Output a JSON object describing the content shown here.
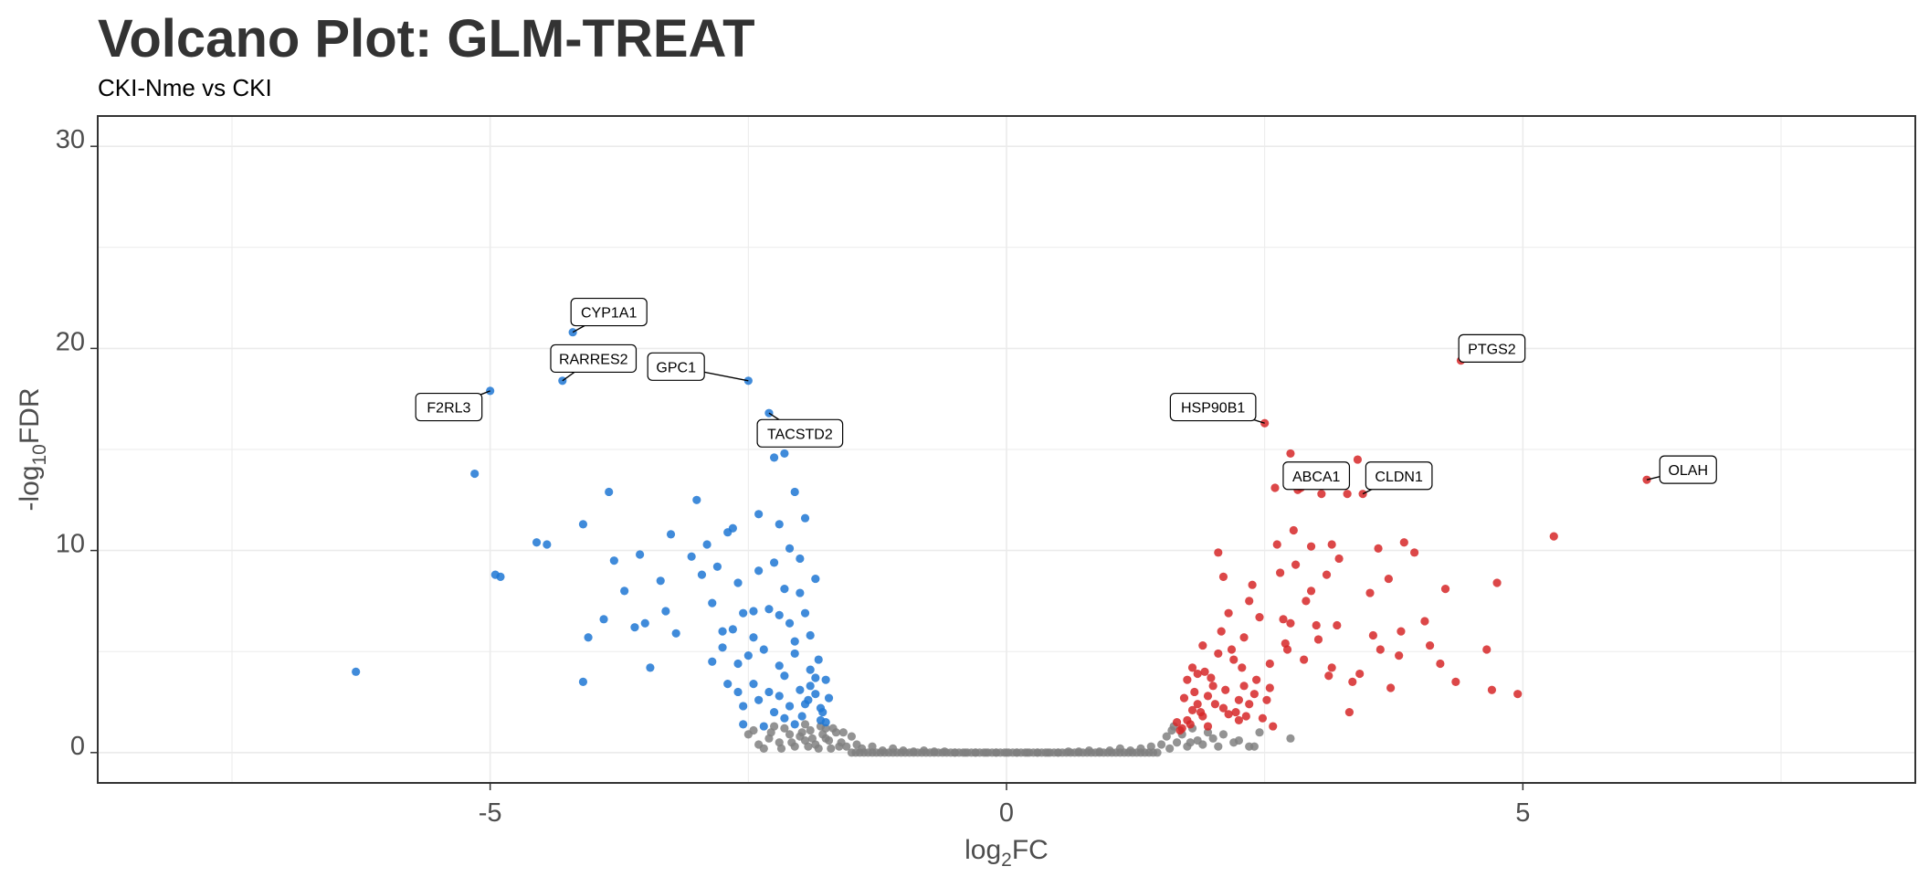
{
  "chart_data": {
    "type": "scatter",
    "title": "Volcano Plot: GLM-TREAT",
    "subtitle": "CKI-Nme vs CKI",
    "xlabel_main": "log",
    "xlabel_sub": "2",
    "xlabel_tail": "FC",
    "ylabel_pre": "-log",
    "ylabel_sub": "10",
    "ylabel_tail": "FDR",
    "xlim": [
      -8.8,
      8.8
    ],
    "ylim": [
      -1.5,
      31.5
    ],
    "x_ticks": [
      -5,
      0,
      5
    ],
    "x_tick_labels": [
      "-5",
      "0",
      "5"
    ],
    "y_ticks": [
      0,
      10,
      20,
      30
    ],
    "y_tick_labels": [
      "0",
      "10",
      "20",
      "30"
    ],
    "grid": true,
    "colors": {
      "down": "#1f77d4",
      "up": "#d62728",
      "ns": "#808080"
    },
    "series": [
      {
        "group": "down",
        "points": [
          [
            -6.3,
            4.0
          ],
          [
            -5.15,
            13.8
          ],
          [
            -5.0,
            17.9
          ],
          [
            -4.95,
            8.8
          ],
          [
            -4.9,
            8.7
          ],
          [
            -4.55,
            10.4
          ],
          [
            -4.45,
            10.3
          ],
          [
            -4.2,
            20.8
          ],
          [
            -4.3,
            18.4
          ],
          [
            -4.1,
            11.3
          ],
          [
            -4.05,
            5.7
          ],
          [
            -4.1,
            3.5
          ],
          [
            -3.9,
            6.6
          ],
          [
            -3.85,
            12.9
          ],
          [
            -3.8,
            9.5
          ],
          [
            -3.7,
            8.0
          ],
          [
            -3.6,
            6.2
          ],
          [
            -3.55,
            9.8
          ],
          [
            -3.5,
            6.4
          ],
          [
            -3.45,
            4.2
          ],
          [
            -3.35,
            8.5
          ],
          [
            -3.3,
            7.0
          ],
          [
            -3.25,
            10.8
          ],
          [
            -3.2,
            5.9
          ],
          [
            -3.05,
            9.7
          ],
          [
            -3.0,
            12.5
          ],
          [
            -2.95,
            8.8
          ],
          [
            -2.9,
            10.3
          ],
          [
            -2.85,
            7.4
          ],
          [
            -2.8,
            9.2
          ],
          [
            -2.75,
            6.0
          ],
          [
            -2.7,
            10.9
          ],
          [
            -2.65,
            11.1
          ],
          [
            -2.6,
            4.4
          ],
          [
            -2.55,
            6.9
          ],
          [
            -2.5,
            18.4
          ],
          [
            -2.45,
            7.0
          ],
          [
            -2.4,
            11.8
          ],
          [
            -2.35,
            15.6
          ],
          [
            -2.3,
            16.8
          ],
          [
            -2.25,
            14.6
          ],
          [
            -2.2,
            11.3
          ],
          [
            -2.15,
            14.8
          ],
          [
            -2.1,
            10.1
          ],
          [
            -2.05,
            12.9
          ],
          [
            -2.0,
            9.6
          ],
          [
            -1.95,
            11.6
          ],
          [
            -2.55,
            1.4
          ],
          [
            -2.45,
            3.4
          ],
          [
            -2.4,
            2.6
          ],
          [
            -2.35,
            5.1
          ],
          [
            -2.3,
            3.0
          ],
          [
            -2.25,
            2.0
          ],
          [
            -2.2,
            4.3
          ],
          [
            -2.15,
            1.7
          ],
          [
            -2.1,
            6.4
          ],
          [
            -2.05,
            5.5
          ],
          [
            -2.0,
            3.1
          ],
          [
            -1.95,
            2.4
          ],
          [
            -1.9,
            4.1
          ],
          [
            -1.85,
            2.9
          ],
          [
            -1.8,
            1.6
          ],
          [
            -1.75,
            3.6
          ],
          [
            -2.85,
            4.5
          ],
          [
            -2.75,
            5.2
          ],
          [
            -2.7,
            3.4
          ],
          [
            -2.6,
            8.4
          ],
          [
            -2.5,
            4.8
          ],
          [
            -2.3,
            7.1
          ],
          [
            -2.2,
            6.8
          ],
          [
            -2.1,
            2.3
          ],
          [
            -2.0,
            7.9
          ],
          [
            -1.9,
            5.8
          ],
          [
            -1.85,
            3.7
          ],
          [
            -1.8,
            2.2
          ],
          [
            -1.75,
            1.5
          ],
          [
            -1.72,
            2.7
          ],
          [
            -2.4,
            9.0
          ],
          [
            -2.25,
            9.4
          ],
          [
            -2.15,
            8.1
          ],
          [
            -2.05,
            4.9
          ],
          [
            -1.95,
            6.9
          ],
          [
            -1.85,
            8.6
          ],
          [
            -2.65,
            6.1
          ],
          [
            -2.55,
            2.3
          ],
          [
            -2.35,
            1.3
          ],
          [
            -2.15,
            3.8
          ],
          [
            -1.98,
            1.8
          ],
          [
            -1.9,
            3.3
          ],
          [
            -1.82,
            4.6
          ],
          [
            -1.78,
            2.0
          ],
          [
            -2.45,
            5.7
          ],
          [
            -2.2,
            2.8
          ],
          [
            -2.05,
            1.4
          ],
          [
            -1.92,
            2.6
          ],
          [
            -2.6,
            3.0
          ]
        ]
      },
      {
        "group": "up",
        "points": [
          [
            1.65,
            1.5
          ],
          [
            1.7,
            1.2
          ],
          [
            1.75,
            1.6
          ],
          [
            1.8,
            2.1
          ],
          [
            1.75,
            3.6
          ],
          [
            1.8,
            4.2
          ],
          [
            1.85,
            3.9
          ],
          [
            1.9,
            5.3
          ],
          [
            1.85,
            2.4
          ],
          [
            1.9,
            1.8
          ],
          [
            1.95,
            2.8
          ],
          [
            2.0,
            3.3
          ],
          [
            2.05,
            4.9
          ],
          [
            2.1,
            2.2
          ],
          [
            2.15,
            6.9
          ],
          [
            2.1,
            8.7
          ],
          [
            2.05,
            9.9
          ],
          [
            2.2,
            4.6
          ],
          [
            2.25,
            2.6
          ],
          [
            2.3,
            5.7
          ],
          [
            2.35,
            7.5
          ],
          [
            2.3,
            3.3
          ],
          [
            2.25,
            1.6
          ],
          [
            2.4,
            2.9
          ],
          [
            2.45,
            6.7
          ],
          [
            2.5,
            16.3
          ],
          [
            2.55,
            4.4
          ],
          [
            2.6,
            13.1
          ],
          [
            2.65,
            8.9
          ],
          [
            2.7,
            5.4
          ],
          [
            2.75,
            14.8
          ],
          [
            2.8,
            9.3
          ],
          [
            2.85,
            13.1
          ],
          [
            2.9,
            7.5
          ],
          [
            2.95,
            10.2
          ],
          [
            3.0,
            6.3
          ],
          [
            3.05,
            12.8
          ],
          [
            3.1,
            8.8
          ],
          [
            3.15,
            4.2
          ],
          [
            3.2,
            6.3
          ],
          [
            3.3,
            12.8
          ],
          [
            3.35,
            3.5
          ],
          [
            3.4,
            14.5
          ],
          [
            3.45,
            12.8
          ],
          [
            3.55,
            5.8
          ],
          [
            3.6,
            10.1
          ],
          [
            3.7,
            8.6
          ],
          [
            3.8,
            4.8
          ],
          [
            3.85,
            10.4
          ],
          [
            3.95,
            9.9
          ],
          [
            4.05,
            6.5
          ],
          [
            4.1,
            5.3
          ],
          [
            4.2,
            4.4
          ],
          [
            4.25,
            8.1
          ],
          [
            4.35,
            3.5
          ],
          [
            4.4,
            19.4
          ],
          [
            4.65,
            5.1
          ],
          [
            4.7,
            3.1
          ],
          [
            4.75,
            8.4
          ],
          [
            4.95,
            2.9
          ],
          [
            5.3,
            10.7
          ],
          [
            6.2,
            13.5
          ],
          [
            1.68,
            1.1
          ],
          [
            1.72,
            2.7
          ],
          [
            1.78,
            1.4
          ],
          [
            1.82,
            3.0
          ],
          [
            1.88,
            2.0
          ],
          [
            1.92,
            4.0
          ],
          [
            1.98,
            3.7
          ],
          [
            2.02,
            2.4
          ],
          [
            2.08,
            6.0
          ],
          [
            2.12,
            3.1
          ],
          [
            2.18,
            5.1
          ],
          [
            2.22,
            2.0
          ],
          [
            2.28,
            4.2
          ],
          [
            2.32,
            1.8
          ],
          [
            2.38,
            8.3
          ],
          [
            2.42,
            3.6
          ],
          [
            2.48,
            1.7
          ],
          [
            2.52,
            2.6
          ],
          [
            2.58,
            1.3
          ],
          [
            2.62,
            10.3
          ],
          [
            2.68,
            6.6
          ],
          [
            2.72,
            5.1
          ],
          [
            2.78,
            11.0
          ],
          [
            2.82,
            13.0
          ],
          [
            2.88,
            4.6
          ],
          [
            2.95,
            8.0
          ],
          [
            3.02,
            5.6
          ],
          [
            3.12,
            3.8
          ],
          [
            3.22,
            9.6
          ],
          [
            3.32,
            2.0
          ],
          [
            3.42,
            3.9
          ],
          [
            3.52,
            7.9
          ],
          [
            3.62,
            5.1
          ],
          [
            3.72,
            3.2
          ],
          [
            3.82,
            6.0
          ],
          [
            1.95,
            1.3
          ],
          [
            2.15,
            1.9
          ],
          [
            2.35,
            2.4
          ],
          [
            2.55,
            3.2
          ],
          [
            2.75,
            6.4
          ],
          [
            3.15,
            10.3
          ]
        ]
      },
      {
        "group": "ns",
        "points": [
          [
            -2.5,
            0.9
          ],
          [
            -2.4,
            0.4
          ],
          [
            -2.3,
            0.7
          ],
          [
            -2.2,
            0.5
          ],
          [
            -2.15,
            1.2
          ],
          [
            -2.1,
            0.9
          ],
          [
            -2.05,
            0.3
          ],
          [
            -2.0,
            0.8
          ],
          [
            -1.95,
            0.6
          ],
          [
            -1.9,
            1.1
          ],
          [
            -1.85,
            0.4
          ],
          [
            -1.8,
            1.3
          ],
          [
            -1.75,
            0.7
          ],
          [
            -1.7,
            0.2
          ],
          [
            -1.65,
            1.0
          ],
          [
            -1.6,
            0.5
          ],
          [
            -1.55,
            0.3
          ],
          [
            -1.5,
            0.8
          ],
          [
            -1.45,
            0.4
          ],
          [
            -1.4,
            0.2
          ],
          [
            -1.3,
            0.3
          ],
          [
            -1.2,
            0.1
          ],
          [
            -1.1,
            0.2
          ],
          [
            -1.0,
            0.1
          ],
          [
            -0.9,
            0.05
          ],
          [
            -0.8,
            0.1
          ],
          [
            -0.7,
            0.05
          ],
          [
            -0.6,
            0.05
          ],
          [
            -0.5,
            0.0
          ],
          [
            -0.4,
            0.0
          ],
          [
            -0.3,
            0.0
          ],
          [
            -0.2,
            0.0
          ],
          [
            -0.1,
            0.0
          ],
          [
            0.0,
            0.0
          ],
          [
            0.1,
            0.0
          ],
          [
            0.2,
            0.0
          ],
          [
            0.3,
            0.0
          ],
          [
            0.4,
            0.0
          ],
          [
            0.5,
            0.0
          ],
          [
            0.6,
            0.05
          ],
          [
            0.7,
            0.05
          ],
          [
            0.8,
            0.1
          ],
          [
            0.9,
            0.05
          ],
          [
            1.0,
            0.1
          ],
          [
            1.1,
            0.2
          ],
          [
            1.2,
            0.1
          ],
          [
            1.3,
            0.2
          ],
          [
            1.4,
            0.3
          ],
          [
            1.5,
            0.4
          ],
          [
            1.55,
            0.8
          ],
          [
            1.6,
            1.1
          ],
          [
            1.65,
            0.5
          ],
          [
            1.7,
            0.9
          ],
          [
            1.75,
            0.3
          ],
          [
            1.8,
            1.2
          ],
          [
            1.85,
            0.6
          ],
          [
            1.9,
            0.4
          ],
          [
            1.95,
            1.0
          ],
          [
            2.0,
            0.7
          ],
          [
            2.05,
            0.3
          ],
          [
            2.1,
            0.9
          ],
          [
            2.2,
            0.5
          ],
          [
            2.35,
            0.3
          ],
          [
            2.45,
            1.0
          ],
          [
            2.75,
            0.7
          ],
          [
            -2.45,
            1.1
          ],
          [
            -2.25,
            1.3
          ],
          [
            -1.95,
            1.4
          ],
          [
            -1.75,
            1.2
          ],
          [
            1.58,
            0.2
          ],
          [
            1.62,
            1.3
          ],
          [
            1.78,
            0.5
          ],
          [
            2.25,
            0.6
          ],
          [
            2.4,
            0.3
          ],
          [
            -1.58,
            1.0
          ],
          [
            -1.62,
            0.3
          ],
          [
            -1.68,
            1.2
          ],
          [
            -1.72,
            0.6
          ],
          [
            -1.78,
            0.9
          ],
          [
            -1.82,
            0.2
          ],
          [
            -1.88,
            0.7
          ],
          [
            -1.92,
            0.3
          ],
          [
            -1.98,
            1.0
          ],
          [
            -2.08,
            0.5
          ],
          [
            -2.18,
            0.2
          ],
          [
            -2.28,
            1.0
          ],
          [
            -2.35,
            0.2
          ]
        ]
      }
    ],
    "labels": [
      {
        "text": "CYP1A1",
        "x": -4.2,
        "y": 20.8,
        "lx": -3.85,
        "ly": 21.8
      },
      {
        "text": "RARRES2",
        "x": -4.3,
        "y": 18.4,
        "lx": -4.0,
        "ly": 19.5
      },
      {
        "text": "GPC1",
        "x": -2.5,
        "y": 18.4,
        "lx": -3.2,
        "ly": 19.1
      },
      {
        "text": "F2RL3",
        "x": -5.0,
        "y": 17.9,
        "lx": -5.4,
        "ly": 17.1
      },
      {
        "text": "TACSTD2",
        "x": -2.3,
        "y": 16.8,
        "lx": -2.0,
        "ly": 15.8
      },
      {
        "text": "PTGS2",
        "x": 4.4,
        "y": 19.4,
        "lx": 4.7,
        "ly": 20.0
      },
      {
        "text": "HSP90B1",
        "x": 2.5,
        "y": 16.3,
        "lx": 2.0,
        "ly": 17.1
      },
      {
        "text": "ABCA1",
        "x": 2.85,
        "y": 13.1,
        "lx": 3.0,
        "ly": 13.7
      },
      {
        "text": "CLDN1",
        "x": 3.45,
        "y": 12.8,
        "lx": 3.8,
        "ly": 13.7
      },
      {
        "text": "OLAH",
        "x": 6.2,
        "y": 13.5,
        "lx": 6.6,
        "ly": 14.0
      }
    ]
  }
}
